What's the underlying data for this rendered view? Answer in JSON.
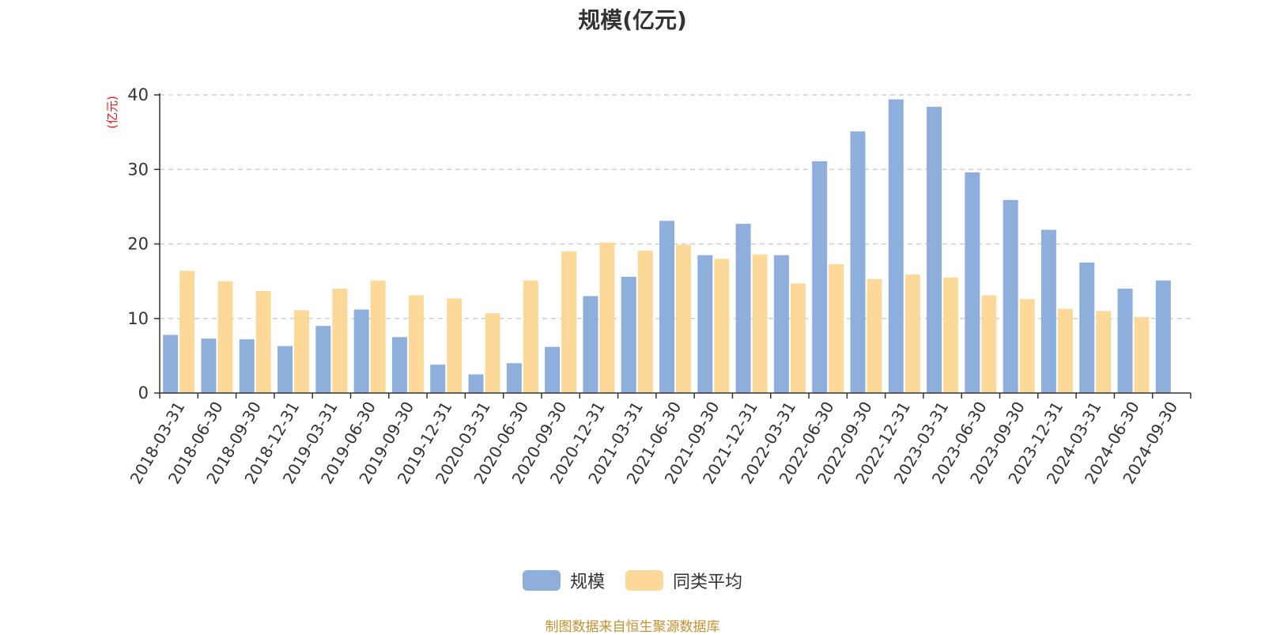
{
  "chart_data": {
    "type": "bar",
    "title": "规模(亿元)",
    "ylabel": "(亿元)",
    "xlabel": "",
    "ylim": [
      0,
      40
    ],
    "yticks": [
      0,
      10,
      20,
      30,
      40
    ],
    "grid": true,
    "legend_position": "bottom",
    "categories": [
      "2018-03-31",
      "2018-06-30",
      "2018-09-30",
      "2018-12-31",
      "2019-03-31",
      "2019-06-30",
      "2019-09-30",
      "2019-12-31",
      "2020-03-31",
      "2020-06-30",
      "2020-09-30",
      "2020-12-31",
      "2021-03-31",
      "2021-06-30",
      "2021-09-30",
      "2021-12-31",
      "2022-03-31",
      "2022-06-30",
      "2022-09-30",
      "2022-12-31",
      "2023-03-31",
      "2023-06-30",
      "2023-09-30",
      "2023-12-31",
      "2024-03-31",
      "2024-06-30",
      "2024-09-30"
    ],
    "series": [
      {
        "name": "规模",
        "color": "#8eaedb",
        "values": [
          7.8,
          7.3,
          7.2,
          6.3,
          9.0,
          11.2,
          7.5,
          3.8,
          2.5,
          4.0,
          6.2,
          13.0,
          15.6,
          23.1,
          18.5,
          22.7,
          18.5,
          31.1,
          35.1,
          39.4,
          38.4,
          29.6,
          25.9,
          21.9,
          17.5,
          14.0,
          15.1
        ]
      },
      {
        "name": "同类平均",
        "color": "#fcd899",
        "values": [
          16.4,
          15.0,
          13.7,
          11.1,
          14.0,
          15.1,
          13.1,
          12.7,
          10.7,
          15.1,
          19.0,
          20.2,
          19.1,
          19.9,
          18.0,
          18.6,
          14.7,
          17.3,
          15.3,
          15.9,
          15.5,
          13.1,
          12.6,
          11.3,
          11.0,
          10.2,
          null
        ]
      }
    ]
  },
  "footer": {
    "source_text": "制图数据来自恒生聚源数据库"
  }
}
